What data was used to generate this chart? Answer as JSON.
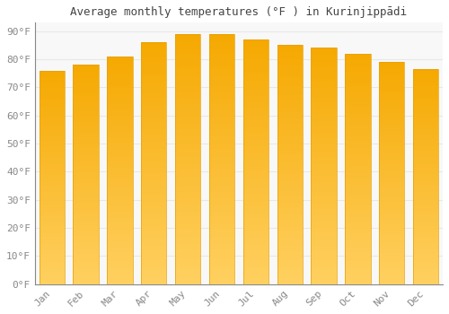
{
  "months": [
    "Jan",
    "Feb",
    "Mar",
    "Apr",
    "May",
    "Jun",
    "Jul",
    "Aug",
    "Sep",
    "Oct",
    "Nov",
    "Dec"
  ],
  "values": [
    76,
    78,
    81,
    86,
    89,
    89,
    87,
    85,
    84,
    82,
    79,
    76.5
  ],
  "bar_color_top": "#F5A800",
  "bar_color_bottom": "#FFD060",
  "bar_edge_color": "#E8A000",
  "title": "Average monthly temperatures (°F ) in Kurinjippādi",
  "ylim": [
    0,
    93
  ],
  "yticks": [
    0,
    10,
    20,
    30,
    40,
    50,
    60,
    70,
    80,
    90
  ],
  "ytick_labels": [
    "0°F",
    "10°F",
    "20°F",
    "30°F",
    "40°F",
    "50°F",
    "60°F",
    "70°F",
    "80°F",
    "90°F"
  ],
  "background_color": "#ffffff",
  "plot_bg_color": "#f8f8f8",
  "grid_color": "#e8e8e8",
  "title_fontsize": 9,
  "tick_fontsize": 8,
  "bar_width": 0.75
}
